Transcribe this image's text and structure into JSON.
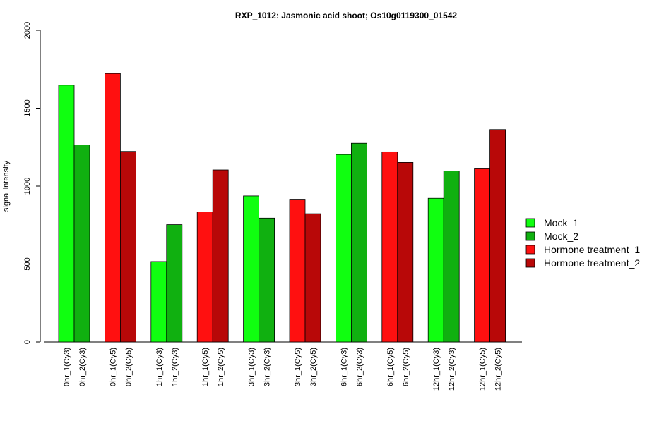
{
  "chart_data": {
    "type": "bar",
    "title": "RXP_1012: Jasmonic acid shoot; Os10g0119300_01542",
    "ylabel": "signal intensity",
    "xlabel": "",
    "ylim": [
      0,
      2000
    ],
    "yticks": [
      0,
      500,
      1000,
      1500,
      2000
    ],
    "grid": false,
    "legend_position": "right",
    "groups": [
      {
        "bars": [
          {
            "label": "0hr_1(Cy3)",
            "value": 1648,
            "series": "Mock_1"
          },
          {
            "label": "0hr_2(Cy3)",
            "value": 1265,
            "series": "Mock_2"
          }
        ]
      },
      {
        "bars": [
          {
            "label": "0hr_1(Cy5)",
            "value": 1723,
            "series": "Hormone treatment_1"
          },
          {
            "label": "0hr_2(Cy5)",
            "value": 1223,
            "series": "Hormone treatment_2"
          }
        ]
      },
      {
        "bars": [
          {
            "label": "1hr_1(Cy3)",
            "value": 516,
            "series": "Mock_1"
          },
          {
            "label": "1hr_2(Cy3)",
            "value": 753,
            "series": "Mock_2"
          }
        ]
      },
      {
        "bars": [
          {
            "label": "1hr_1(Cy5)",
            "value": 835,
            "series": "Hormone treatment_1"
          },
          {
            "label": "1hr_2(Cy5)",
            "value": 1104,
            "series": "Hormone treatment_2"
          }
        ]
      },
      {
        "bars": [
          {
            "label": "3hr_1(Cy3)",
            "value": 937,
            "series": "Mock_1"
          },
          {
            "label": "3hr_2(Cy3)",
            "value": 795,
            "series": "Mock_2"
          }
        ]
      },
      {
        "bars": [
          {
            "label": "3hr_1(Cy5)",
            "value": 916,
            "series": "Hormone treatment_1"
          },
          {
            "label": "3hr_2(Cy5)",
            "value": 823,
            "series": "Hormone treatment_2"
          }
        ]
      },
      {
        "bars": [
          {
            "label": "6hr_1(Cy3)",
            "value": 1203,
            "series": "Mock_1"
          },
          {
            "label": "6hr_2(Cy3)",
            "value": 1275,
            "series": "Mock_2"
          }
        ]
      },
      {
        "bars": [
          {
            "label": "6hr_1(Cy5)",
            "value": 1220,
            "series": "Hormone treatment_1"
          },
          {
            "label": "6hr_2(Cy5)",
            "value": 1152,
            "series": "Hormone treatment_2"
          }
        ]
      },
      {
        "bars": [
          {
            "label": "12hr_1(Cy3)",
            "value": 922,
            "series": "Mock_1"
          },
          {
            "label": "12hr_2(Cy3)",
            "value": 1097,
            "series": "Mock_2"
          }
        ]
      },
      {
        "bars": [
          {
            "label": "12hr_1(Cy5)",
            "value": 1111,
            "series": "Hormone treatment_1"
          },
          {
            "label": "12hr_2(Cy5)",
            "value": 1363,
            "series": "Hormone treatment_2"
          }
        ]
      }
    ],
    "series": [
      {
        "name": "Mock_1",
        "color": "#10ff10"
      },
      {
        "name": "Mock_2",
        "color": "#10b010"
      },
      {
        "name": "Hormone treatment_1",
        "color": "#ff1010"
      },
      {
        "name": "Hormone treatment_2",
        "color": "#b80808"
      }
    ]
  }
}
